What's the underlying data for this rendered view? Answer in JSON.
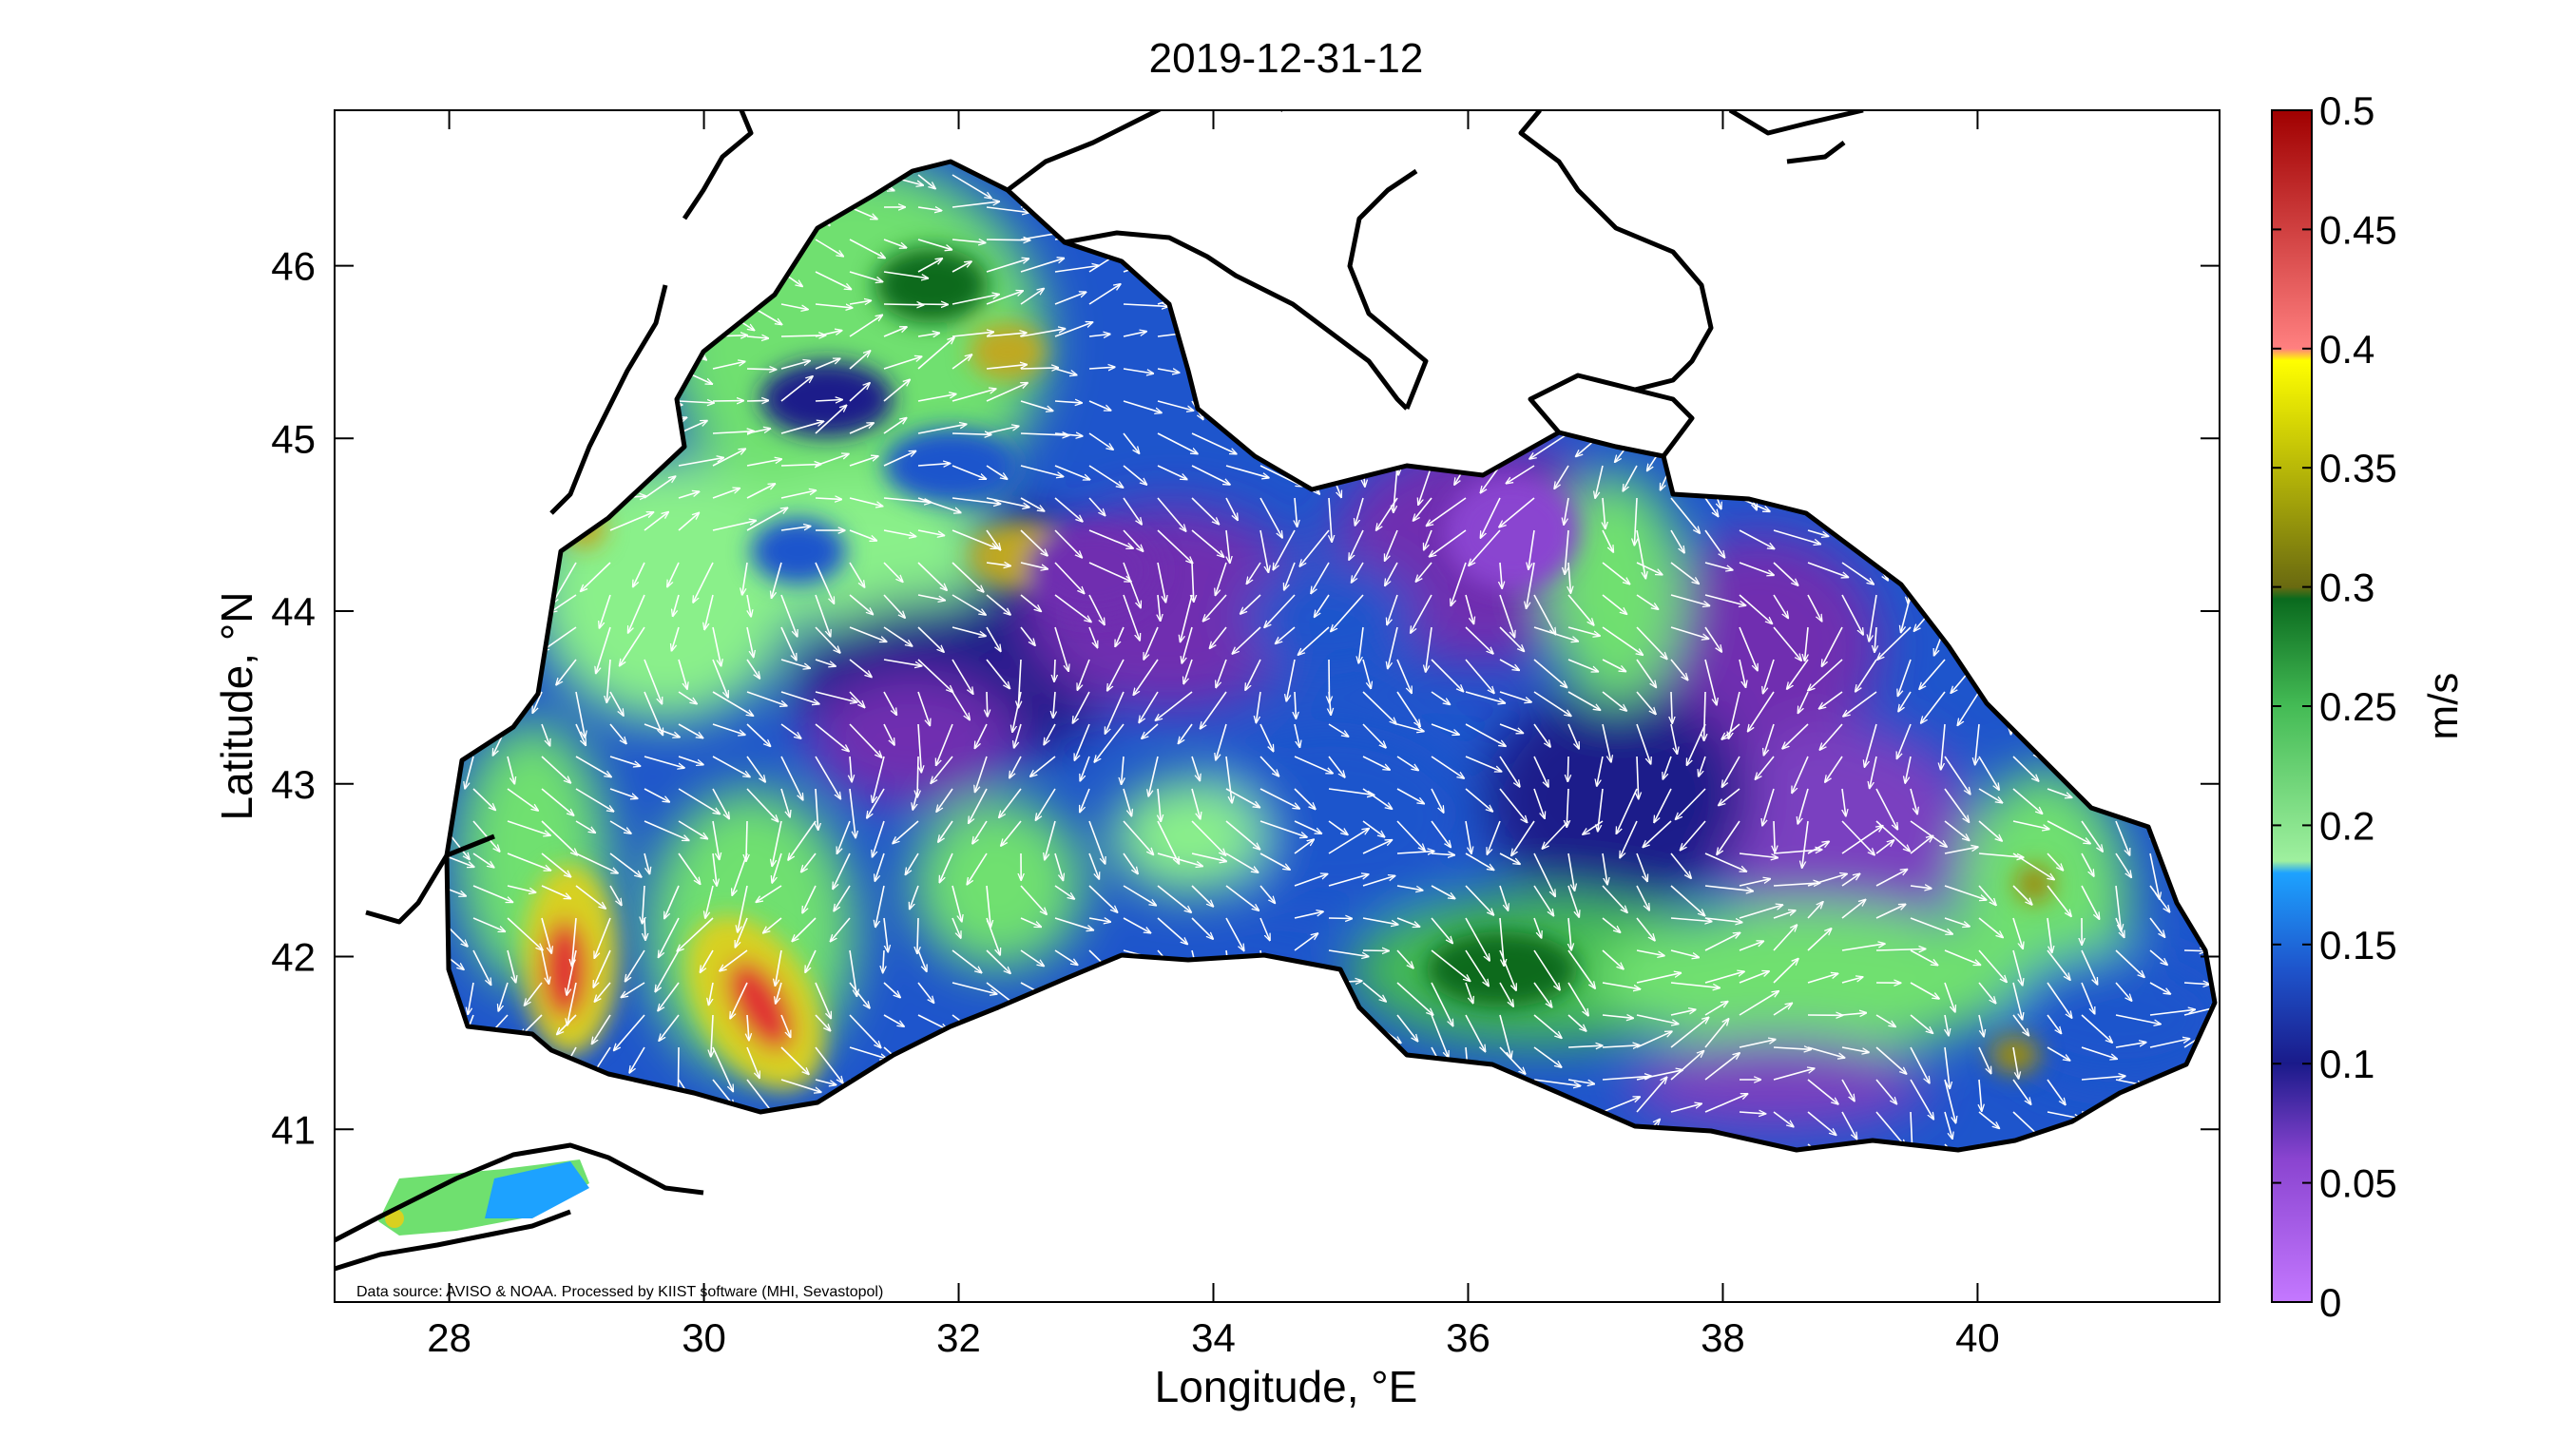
{
  "title": "2019-12-31-12",
  "xlabel": "Longitude, °E",
  "ylabel": "Latitude, °N",
  "source_note": "Data source: AVISO & NOAA. Processed by KIIST software (MHI, Sevastopol)",
  "map": {
    "lon_range": [
      27.1,
      41.9
    ],
    "lat_range": [
      40.0,
      46.9
    ],
    "x_ticks": [
      "28",
      "30",
      "32",
      "34",
      "36",
      "38",
      "40"
    ],
    "y_ticks": [
      "41",
      "42",
      "43",
      "44",
      "45",
      "46"
    ]
  },
  "colorbar": {
    "label": "m/s",
    "range": [
      0,
      0.5
    ],
    "tick_labels": [
      "0",
      "0.05",
      "0.1",
      "0.15",
      "0.2",
      "0.25",
      "0.3",
      "0.35",
      "0.4",
      "0.45",
      "0.5"
    ],
    "colors": [
      "#c478ff",
      "#9a55dd",
      "#6f2fb0",
      "#1a1a8a",
      "#1e55cc",
      "#1da2ff",
      "#9ff09f",
      "#44bb55",
      "#0a6a1e",
      "#9b8d10",
      "#d8d020",
      "#ffff00",
      "#ff8080",
      "#e03030",
      "#a00000"
    ]
  }
}
